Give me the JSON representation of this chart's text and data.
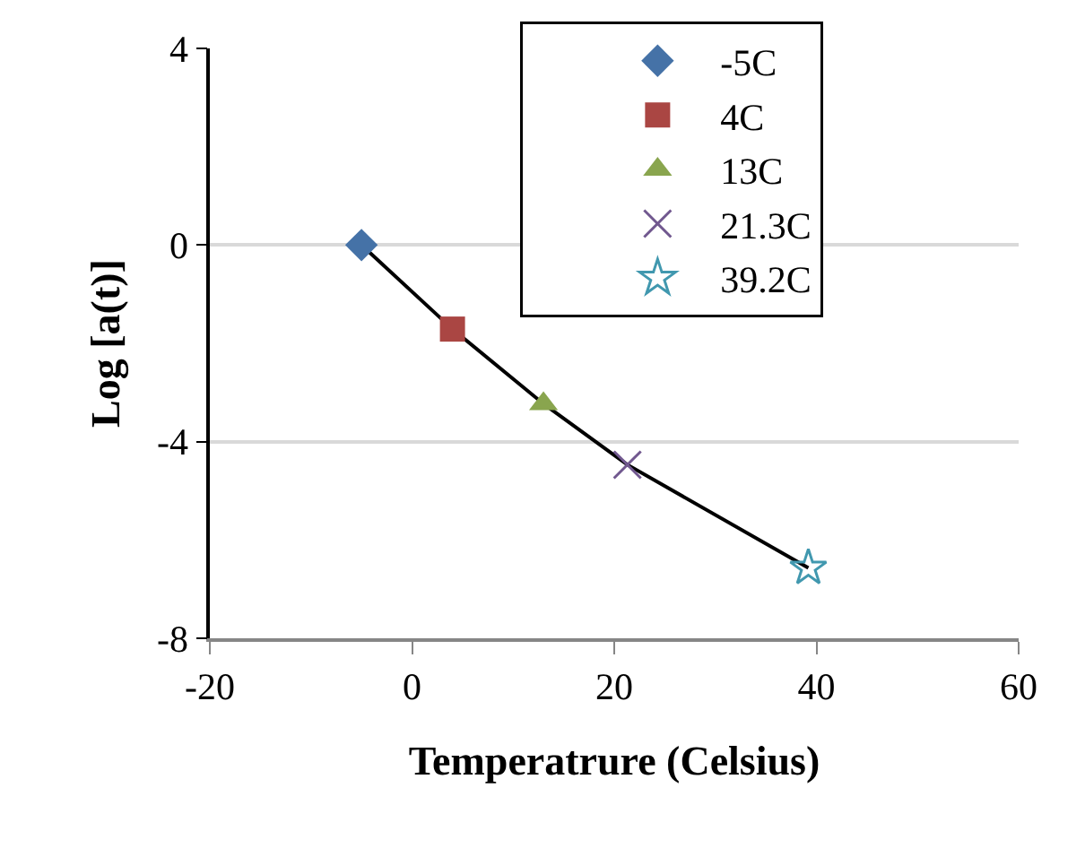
{
  "chart_data": {
    "type": "scatter",
    "xlabel": "Temperatrure (Celsius)",
    "ylabel": "Log [a(t)]",
    "xlim": [
      -20,
      60
    ],
    "xticks": [
      -20,
      0,
      20,
      40,
      60
    ],
    "ylim": [
      -8,
      4
    ],
    "yticks": [
      -8,
      -4,
      0,
      4
    ],
    "grid": "y",
    "legend": "top right",
    "series": [
      {
        "type": "line",
        "color": "#000000",
        "marker": "none",
        "line_style": "solid",
        "x": [
          -5,
          4,
          13,
          21.3,
          39.2
        ],
        "values": [
          0,
          -1.71,
          -3.23,
          -4.47,
          -6.57
        ]
      },
      {
        "name": "-5C",
        "color": "#4572a7",
        "marker": "diamond",
        "x": [
          -5
        ],
        "values": [
          0
        ]
      },
      {
        "name": "4C",
        "color": "#aa4643",
        "marker": "square",
        "x": [
          4
        ],
        "values": [
          -1.71
        ]
      },
      {
        "name": "13C",
        "color": "#89a54e",
        "marker": "triangle",
        "x": [
          13
        ],
        "values": [
          -3.23
        ]
      },
      {
        "name": "21.3C",
        "color": "#71588f",
        "marker": "cross",
        "x": [
          21.3
        ],
        "values": [
          -4.47
        ]
      },
      {
        "name": "39.2C",
        "color": "#4198af",
        "marker": "star",
        "x": [
          39.2
        ],
        "values": [
          -6.57
        ]
      }
    ]
  }
}
